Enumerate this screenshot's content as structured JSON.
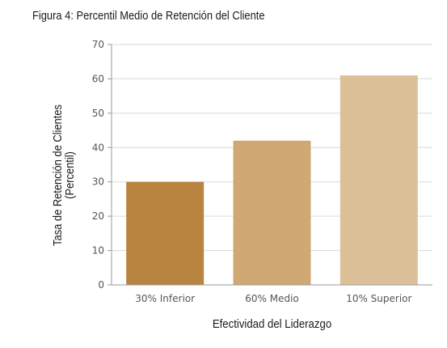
{
  "figure_title": "Figura 4: Percentil Medio de Retención del Cliente",
  "colors": {
    "bar_colors": [
      "#b8843f",
      "#d0a874",
      "#dcc097"
    ],
    "grid": "#d9d9d9",
    "axis": "#999999"
  },
  "chart_data": {
    "type": "bar",
    "categories": [
      "30% Inferior",
      "60% Medio",
      "10% Superior"
    ],
    "values": [
      30,
      42,
      61
    ],
    "title": "Figura 4: Percentil Medio de Retención del Cliente",
    "xlabel": "Efectividad del Liderazgo",
    "ylabel_lines": [
      "Tasa de Retención de Clientes",
      "(Percentil)"
    ],
    "ylim": [
      0,
      70
    ],
    "yticks": [
      0,
      10,
      20,
      30,
      40,
      50,
      60,
      70
    ],
    "grid": true,
    "legend": "none"
  }
}
